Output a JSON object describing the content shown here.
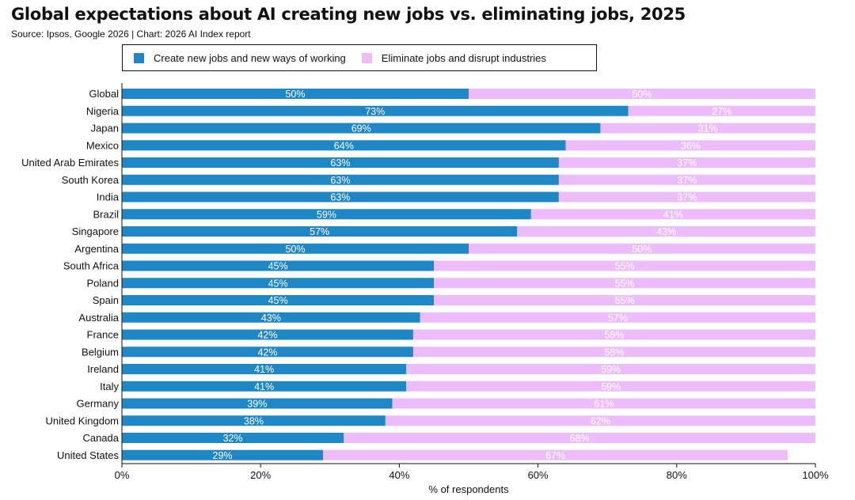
{
  "title": "Global expectations about AI creating new jobs vs. eliminating jobs, 2025",
  "subtitle": "Source: Ipsos, Google 2026 | Chart: 2026 AI Index report",
  "colors": {
    "create": "#1f87c6",
    "eliminate": "#edbdfb",
    "axis": "#111111",
    "bar_label": "#ffffff"
  },
  "chart_data": {
    "type": "bar",
    "orientation": "horizontal",
    "stacked": true,
    "categories": [
      "Global",
      "Nigeria",
      "Japan",
      "Mexico",
      "United Arab Emirates",
      "South Korea",
      "India",
      "Brazil",
      "Singapore",
      "Argentina",
      "South Africa",
      "Poland",
      "Spain",
      "Australia",
      "France",
      "Belgium",
      "Ireland",
      "Italy",
      "Germany",
      "United Kingdom",
      "Canada",
      "United States"
    ],
    "series": [
      {
        "name": "Create new jobs and new ways of working",
        "values": [
          50,
          73,
          69,
          64,
          63,
          63,
          63,
          59,
          57,
          50,
          45,
          45,
          45,
          43,
          42,
          42,
          41,
          41,
          39,
          38,
          32,
          29
        ],
        "labels": [
          "50%",
          "73%",
          "69%",
          "64%",
          "63%",
          "63%",
          "63%",
          "59%",
          "57%",
          "50%",
          "45%",
          "45%",
          "45%",
          "43%",
          "42%",
          "42%",
          "41%",
          "41%",
          "39%",
          "38%",
          "32%",
          "29%"
        ]
      },
      {
        "name": "Eliminate jobs and disrupt industries",
        "values": [
          50,
          27,
          31,
          36,
          37,
          37,
          37,
          41,
          43,
          50,
          55,
          55,
          55,
          57,
          58,
          58,
          59,
          59,
          61,
          62,
          68,
          67
        ],
        "labels": [
          "50%",
          "27%",
          "31%",
          "36%",
          "37%",
          "37%",
          "37%",
          "41%",
          "43%",
          "50%",
          "55%",
          "55%",
          "55%",
          "57%",
          "58%",
          "58%",
          "59%",
          "59%",
          "61%",
          "62%",
          "68%",
          "67%"
        ]
      }
    ],
    "xlabel": "% of respondents",
    "xlim": [
      0,
      100
    ],
    "xticks": [
      0,
      20,
      40,
      60,
      80,
      100
    ],
    "xtick_labels": [
      "0%",
      "20%",
      "40%",
      "60%",
      "80%",
      "100%"
    ],
    "grid": false,
    "legend_placement": "top"
  }
}
